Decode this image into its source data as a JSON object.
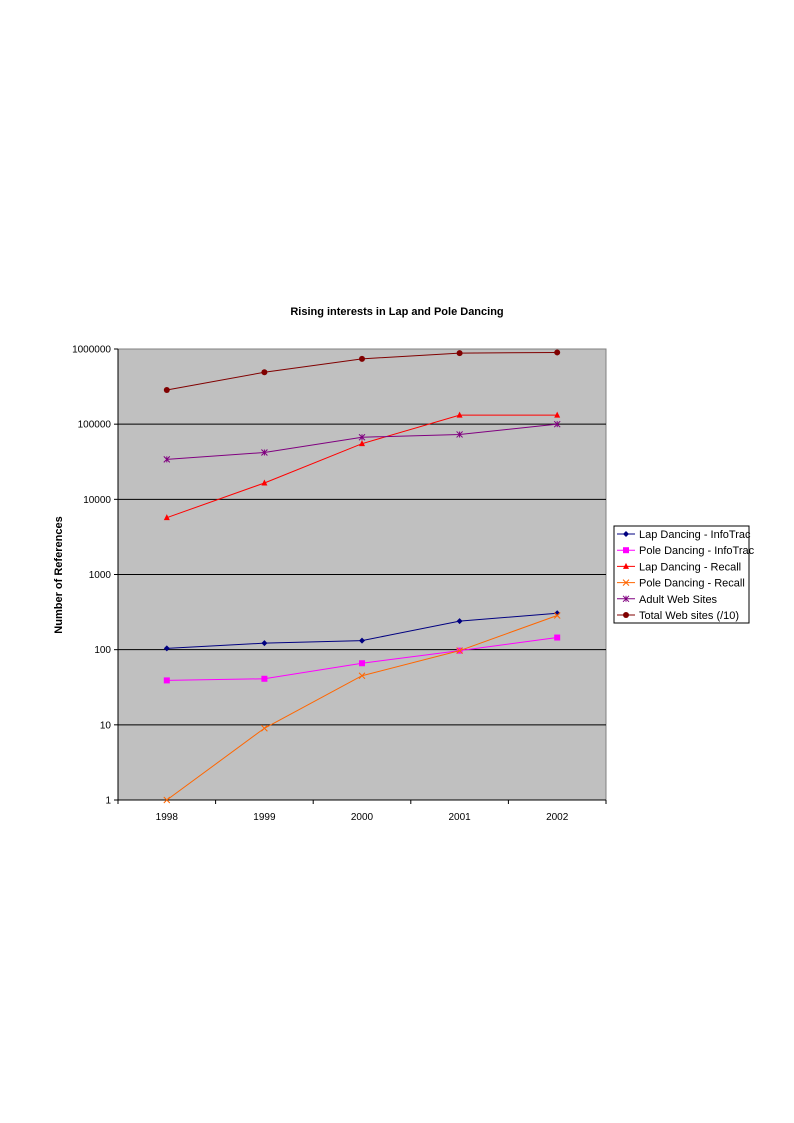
{
  "chart_data": {
    "type": "line",
    "title": "Rising interests in Lap and Pole Dancing",
    "xlabel": "",
    "ylabel": "Number of References",
    "yscale": "log",
    "ylim": [
      1,
      1000000
    ],
    "y_ticks": [
      "1",
      "10",
      "100",
      "1000",
      "10000",
      "100000",
      "1000000"
    ],
    "categories": [
      "1998",
      "1999",
      "2000",
      "2001",
      "2002"
    ],
    "grid": "horizontal major",
    "plot_background": "#c0c0c0",
    "legend_position": "right",
    "series": [
      {
        "name": "Lap Dancing - InfoTrac",
        "color": "#000080",
        "marker": "diamond",
        "values": [
          104,
          122,
          132,
          240,
          305
        ]
      },
      {
        "name": "Pole Dancing - InfoTrac",
        "color": "#ff00ff",
        "marker": "square",
        "values": [
          39,
          41,
          66,
          97,
          145
        ]
      },
      {
        "name": "Lap Dancing - Recall",
        "color": "#ff0000",
        "marker": "triangle",
        "values": [
          5700,
          16500,
          55000,
          132000,
          132000
        ]
      },
      {
        "name": "Pole Dancing - Recall",
        "color": "#ff6600",
        "marker": "x",
        "values": [
          1,
          9,
          45,
          97,
          285
        ]
      },
      {
        "name": "Adult Web Sites",
        "color": "#800080",
        "marker": "star",
        "values": [
          34000,
          42000,
          67000,
          73000,
          100000
        ]
      },
      {
        "name": "Total Web sites (/10)",
        "color": "#800000",
        "marker": "circle",
        "values": [
          285000,
          490000,
          740000,
          880000,
          900000
        ]
      }
    ]
  }
}
